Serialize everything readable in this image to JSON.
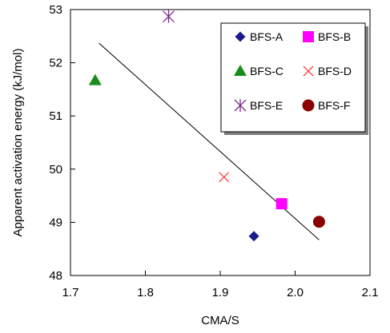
{
  "chart_data": {
    "type": "scatter",
    "title": "",
    "xlabel": "CMA/S",
    "ylabel": "Apparent activation energy (kJ/mol)",
    "xlim": [
      1.7,
      2.1
    ],
    "ylim": [
      48,
      53
    ],
    "xticks": [
      "1.7",
      "1.8",
      "1.9",
      "2.0",
      "2.1"
    ],
    "yticks": [
      "48",
      "49",
      "50",
      "51",
      "52",
      "53"
    ],
    "grid": false,
    "legend_position": "top-right",
    "series": [
      {
        "name": "BFS-A",
        "marker": "diamond",
        "color": "#1a1a8c",
        "x": 1.945,
        "y": 48.74
      },
      {
        "name": "BFS-B",
        "marker": "square",
        "color": "#ff00ff",
        "x": 1.982,
        "y": 49.35
      },
      {
        "name": "BFS-C",
        "marker": "triangle",
        "color": "#1a8c1a",
        "x": 1.733,
        "y": 51.67
      },
      {
        "name": "BFS-D",
        "marker": "x",
        "color": "#ff3b3b",
        "x": 1.905,
        "y": 49.85
      },
      {
        "name": "BFS-E",
        "marker": "star",
        "color": "#7a2a8c",
        "x": 1.831,
        "y": 52.87
      },
      {
        "name": "BFS-F",
        "marker": "circle",
        "color": "#8b0000",
        "x": 2.032,
        "y": 49.01
      }
    ],
    "trendline": {
      "x": [
        1.738,
        2.032
      ],
      "y": [
        52.37,
        48.67
      ],
      "color": "#000000"
    }
  }
}
